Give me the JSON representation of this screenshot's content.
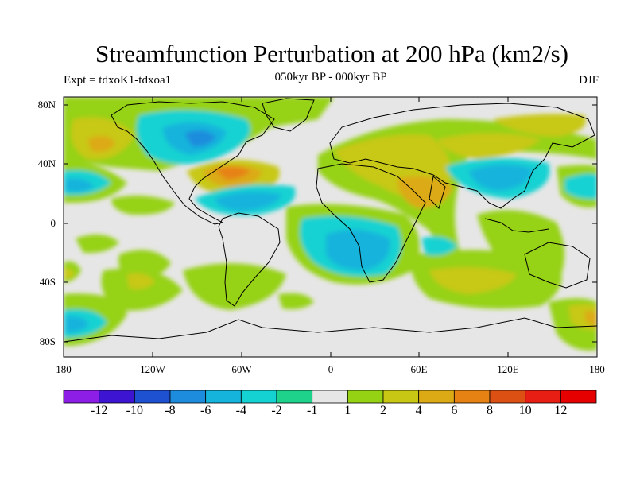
{
  "title": "Streamfunction Perturbation at 200 hPa (km2/s)",
  "subtitle": "050kyr BP - 000kyr BP",
  "left_label": "Expt = tdxoK1-tdxoa1",
  "right_label": "DJF",
  "lat_ticks": [
    "80N",
    "40N",
    "0",
    "40S",
    "80S"
  ],
  "lon_ticks": [
    "180",
    "120W",
    "60W",
    "0",
    "60E",
    "120E",
    "180"
  ],
  "colorbar": {
    "colors": [
      "#8c1ee6",
      "#3c14d2",
      "#1e50d2",
      "#1e8cdc",
      "#14b4dc",
      "#14d2d2",
      "#1ed28c",
      "#e6e6e6",
      "#96d214",
      "#c8c814",
      "#dcaa14",
      "#e68214",
      "#dc5014",
      "#e61e14",
      "#e60000"
    ],
    "labels": [
      "-12",
      "-10",
      "-8",
      "-6",
      "-4",
      "-2",
      "-1",
      "1",
      "2",
      "4",
      "6",
      "8",
      "10",
      "12"
    ]
  },
  "map_colors": {
    "background": "#e6e6e6",
    "lime": "#96d214",
    "olive": "#c8c814",
    "orange": "#dcaa14",
    "dark_orange": "#e68214",
    "teal": "#14d2d2",
    "green": "#1ed28c",
    "cyan": "#14b4dc",
    "blue": "#1e8cdc"
  }
}
